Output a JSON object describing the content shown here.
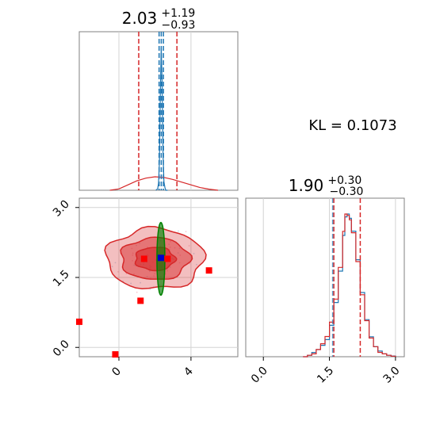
{
  "chart_data": [
    {
      "type": "area",
      "panel": "top-left",
      "parameter": "param_1",
      "title_value": "2.03",
      "title_plus": "+1.19",
      "title_minus": "−0.93",
      "xlim": [
        -2.2,
        6.6
      ],
      "quantile_lines_red": [
        1.1,
        2.03,
        3.22
      ],
      "quantile_lines_blue": [
        2.23,
        2.35,
        2.47
      ],
      "series": [
        {
          "color": "#1f77b4",
          "style": "step",
          "x": [
            2.05,
            2.15,
            2.2,
            2.25,
            2.3,
            2.35,
            2.4,
            2.45,
            2.5,
            2.55,
            2.6,
            2.7
          ],
          "y": [
            0.0,
            0.01,
            0.05,
            0.2,
            0.7,
            1.0,
            0.75,
            0.25,
            0.06,
            0.02,
            0.0,
            0.0
          ]
        },
        {
          "color": "#d62728",
          "style": "step",
          "x": [
            -0.5,
            0.0,
            0.5,
            1.0,
            1.5,
            2.0,
            2.5,
            3.0,
            3.5,
            4.0,
            4.5,
            5.0,
            5.5
          ],
          "y": [
            0.0,
            0.01,
            0.04,
            0.07,
            0.09,
            0.1,
            0.095,
            0.08,
            0.06,
            0.04,
            0.02,
            0.008,
            0.0
          ]
        }
      ]
    },
    {
      "type": "heatmap",
      "panel": "bottom-left",
      "x_parameter": "param_1",
      "y_parameter": "param_2",
      "xlim": [
        -2.2,
        6.6
      ],
      "ylim": [
        -0.2,
        3.2
      ],
      "x_ticks": [
        "0",
        "4"
      ],
      "y_ticks": [
        "0.0",
        "1.5",
        "3.0"
      ],
      "contours": [
        {
          "color": "#d62728",
          "center": [
            2.0,
            1.9
          ],
          "half_widths": [
            2.7,
            0.65
          ],
          "opacity": 0.45
        },
        {
          "color": "#d62728",
          "center": [
            2.0,
            1.9
          ],
          "half_widths": [
            1.9,
            0.45
          ],
          "opacity": 0.75
        },
        {
          "color": "#d62728",
          "center": [
            2.0,
            1.9
          ],
          "half_widths": [
            1.1,
            0.25
          ],
          "opacity": 0.9
        },
        {
          "color": "#008000",
          "center": [
            2.33,
            1.9
          ],
          "half_widths": [
            0.22,
            0.78
          ],
          "opacity": 1.0
        }
      ],
      "markers": [
        {
          "x": 1.4,
          "y": 1.9,
          "color": "#ff0000"
        },
        {
          "x": 2.7,
          "y": 1.9,
          "color": "#ff0000"
        },
        {
          "x": 1.2,
          "y": 1.0,
          "color": "#ff0000"
        },
        {
          "x": 5.0,
          "y": 1.65,
          "color": "#ff0000"
        },
        {
          "x": -2.2,
          "y": 0.55,
          "color": "#ff0000"
        },
        {
          "x": -0.2,
          "y": -0.15,
          "color": "#ff0000"
        },
        {
          "x": 2.33,
          "y": 1.92,
          "color": "#0000cc"
        }
      ]
    },
    {
      "type": "area",
      "panel": "bottom-right",
      "parameter": "param_2",
      "title_value": "1.90",
      "title_plus": "+0.30",
      "title_minus": "−0.30",
      "xlim": [
        -0.4,
        3.2
      ],
      "x_ticks": [
        "0.0",
        "1.5",
        "3.0"
      ],
      "quantile_lines_red": [
        1.6,
        1.9,
        2.2
      ],
      "quantile_lines_blue": [
        1.6,
        1.9,
        2.2
      ],
      "series": [
        {
          "color": "#1f77b4",
          "style": "step",
          "x": [
            0.9,
            1.0,
            1.1,
            1.2,
            1.3,
            1.4,
            1.5,
            1.6,
            1.7,
            1.8,
            1.85,
            1.9,
            1.95,
            2.0,
            2.1,
            2.2,
            2.3,
            2.4,
            2.5,
            2.6,
            2.7,
            2.8,
            2.9,
            3.0
          ],
          "y": [
            0.0,
            0.01,
            0.03,
            0.05,
            0.08,
            0.12,
            0.22,
            0.38,
            0.6,
            0.85,
            0.98,
            1.0,
            0.97,
            0.88,
            0.68,
            0.45,
            0.26,
            0.14,
            0.07,
            0.04,
            0.02,
            0.01,
            0.005,
            0.0
          ]
        },
        {
          "color": "#d62728",
          "style": "step",
          "x": [
            0.9,
            1.0,
            1.1,
            1.2,
            1.3,
            1.4,
            1.5,
            1.6,
            1.7,
            1.8,
            1.85,
            1.9,
            1.95,
            2.0,
            2.1,
            2.2,
            2.3,
            2.4,
            2.5,
            2.6,
            2.7,
            2.8,
            2.9,
            3.0
          ],
          "y": [
            0.0,
            0.01,
            0.02,
            0.05,
            0.09,
            0.14,
            0.24,
            0.4,
            0.62,
            0.87,
            0.99,
            0.98,
            0.95,
            0.86,
            0.66,
            0.43,
            0.25,
            0.13,
            0.07,
            0.03,
            0.02,
            0.01,
            0.004,
            0.0
          ]
        }
      ]
    }
  ],
  "annotation": {
    "kl_text": "KL = 0.1073"
  }
}
